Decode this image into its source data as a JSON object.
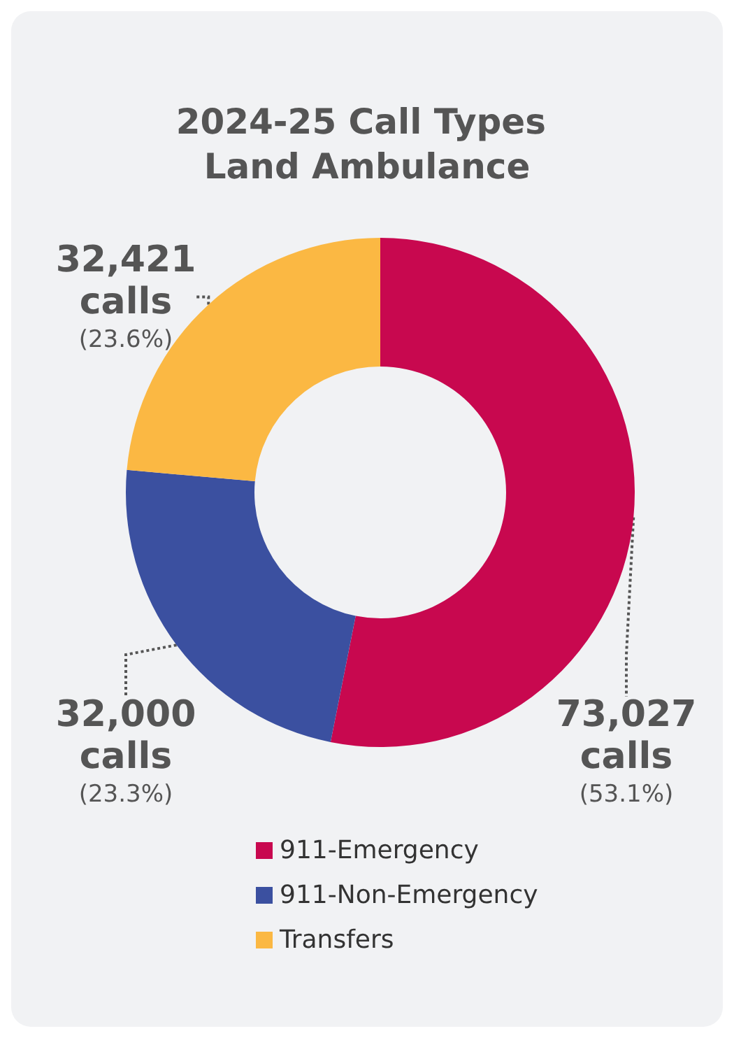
{
  "chart_data": {
    "type": "donut",
    "title": "2024-25 Call Types Land Ambulance",
    "categories": [
      "911-Emergency",
      "911-Non-Emergency",
      "Transfers"
    ],
    "values": [
      73027,
      32000,
      32421
    ],
    "colors": [
      "#c8084f",
      "#3b50a0",
      "#fbb843"
    ],
    "value_labels": [
      "73,027 calls (53.1%)",
      "32,000 calls (23.3%)",
      "32,421 calls (23.6%)"
    ],
    "legend": "bottom"
  }
}
